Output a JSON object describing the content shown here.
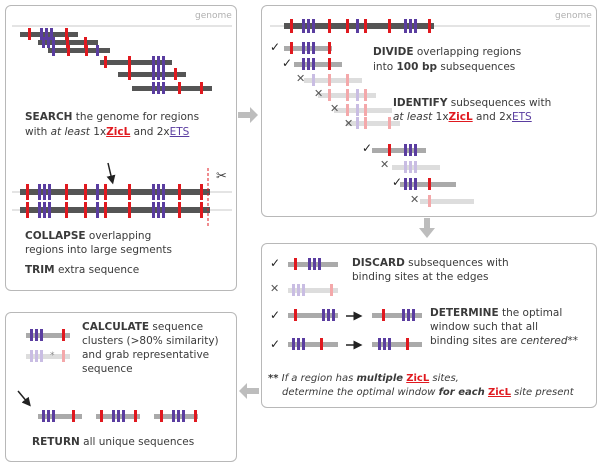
{
  "genome_label": "genome",
  "search": {
    "verb": "SEARCH",
    "rest1": " the genome for regions",
    "with": "with ",
    "atleast": "at least",
    "one": " 1x",
    "zicl": "ZicL",
    "and": " and 2x",
    "ets": "ETS"
  },
  "collapse": {
    "verb": "COLLAPSE",
    "rest1": " overlapping",
    "line2": "regions into large segments"
  },
  "trim": {
    "verb": "TRIM",
    "rest": " extra sequence"
  },
  "divide": {
    "verb": "DIVIDE",
    "rest1": " overlapping regions",
    "into": "into ",
    "bp": "100 bp",
    "rest2": " subsequences"
  },
  "identify": {
    "verb": "IDENTIFY",
    "rest1": " subsequences with",
    "atleast": "at least",
    "one": " 1x",
    "zicl": "ZicL",
    "and": " and 2x",
    "ets": "ETS"
  },
  "discard": {
    "verb": "DISCARD",
    "rest1": " subsequences with",
    "line2": "binding sites at the edges"
  },
  "determine": {
    "verb": "DETERMINE",
    "rest1": " the optimal",
    "line2": "window such that all",
    "line3a": "binding sites are ",
    "centered": "centered",
    "stars": "**"
  },
  "footnote": {
    "stars": "**",
    "l1a": " If a region has ",
    "multiple": "multiple",
    "l1b": " ",
    "zicl": "ZicL",
    "l1c": " sites,",
    "l2a": "determine the optimal window ",
    "foreach": "for each",
    "l2b": " ",
    "zicl2": "ZicL",
    "l2c": " site present"
  },
  "calculate": {
    "verb": "CALCULATE",
    "rest1": " sequence",
    "line2": "clusters (>80% similarity)",
    "line3": "and grab representative",
    "line4": "sequence"
  },
  "return": {
    "verb": "RETURN",
    "rest": " all unique sequences"
  },
  "marks": {
    "check": "✓",
    "cross": "✕",
    "scissors": "✂",
    "arrow_right": "➔",
    "asterisk": "*"
  },
  "colors": {
    "zicl": "#e0191f",
    "ets": "#5a3da0",
    "dark_bar": "#555555",
    "light_bar": "#bdbdbd"
  }
}
